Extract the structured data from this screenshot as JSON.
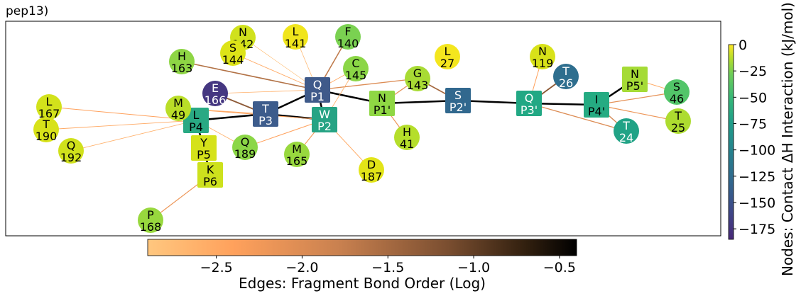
{
  "panel_label": "pep13)",
  "node_colorbar": {
    "title": "Nodes: Contact ΔH Interaction (kJ/mol)",
    "ticks": [
      "0",
      "−25",
      "−50",
      "−75",
      "−100",
      "−125",
      "−150",
      "−175"
    ],
    "tick_values": [
      0,
      -25,
      -50,
      -75,
      -100,
      -125,
      -150,
      -175
    ],
    "range": [
      -185,
      0
    ],
    "colormap": "viridis"
  },
  "edge_colorbar": {
    "title": "Edges: Fragment Bond Order (Log)",
    "ticks": [
      "−2.5",
      "−2.0",
      "−1.5",
      "−1.0",
      "−0.5"
    ],
    "tick_values": [
      -2.5,
      -2.0,
      -1.5,
      -1.0,
      -0.5
    ],
    "range": [
      -2.9,
      -0.4
    ],
    "colormap": "copper_r"
  },
  "nodes": [
    {
      "id": "Q_P1",
      "line1": "Q",
      "line2": "P1",
      "shape": "square",
      "color": "#3f5a8a",
      "text_color": "#ffffff"
    },
    {
      "id": "T_P3",
      "line1": "T",
      "line2": "P3",
      "shape": "square",
      "color": "#3d5c8c",
      "text_color": "#ffffff"
    },
    {
      "id": "W_P2",
      "line1": "W",
      "line2": "P2",
      "shape": "square",
      "color": "#26a384",
      "text_color": "#ffffff"
    },
    {
      "id": "L_P4",
      "line1": "L",
      "line2": "P4",
      "shape": "square",
      "color": "#29a983",
      "text_color": "#000000"
    },
    {
      "id": "Y_P5",
      "line1": "Y",
      "line2": "P5",
      "shape": "square",
      "color": "#d5e21a",
      "text_color": "#000000"
    },
    {
      "id": "K_P6",
      "line1": "K",
      "line2": "P6",
      "shape": "square",
      "color": "#cde11d",
      "text_color": "#000000"
    },
    {
      "id": "N_P1p",
      "line1": "N",
      "line2": "P1'",
      "shape": "square",
      "color": "#8fd744",
      "text_color": "#000000"
    },
    {
      "id": "S_P2p",
      "line1": "S",
      "line2": "P2'",
      "shape": "square",
      "color": "#31688e",
      "text_color": "#ffffff"
    },
    {
      "id": "Q_P3p",
      "line1": "Q",
      "line2": "P3'",
      "shape": "square",
      "color": "#22a884",
      "text_color": "#ffffff"
    },
    {
      "id": "I_P4p",
      "line1": "I",
      "line2": "P4'",
      "shape": "square",
      "color": "#25ab82",
      "text_color": "#000000"
    },
    {
      "id": "N_P5p",
      "line1": "N",
      "line2": "P5'",
      "shape": "square",
      "color": "#a5db36",
      "text_color": "#000000"
    },
    {
      "id": "E_166",
      "line1": "E",
      "line2": "166",
      "shape": "circle",
      "color": "#453781",
      "text_color": "#ffffff"
    },
    {
      "id": "N_142",
      "line1": "N",
      "line2": "142",
      "shape": "circle",
      "color": "#d0e11c",
      "text_color": "#000000"
    },
    {
      "id": "S_144",
      "line1": "S",
      "line2": "144",
      "shape": "circle",
      "color": "#dde318",
      "text_color": "#000000"
    },
    {
      "id": "L_141",
      "line1": "L",
      "line2": "141",
      "shape": "circle",
      "color": "#f0e51c",
      "text_color": "#000000"
    },
    {
      "id": "F_140",
      "line1": "F",
      "line2": "140",
      "shape": "circle",
      "color": "#7ad151",
      "text_color": "#000000"
    },
    {
      "id": "H_163",
      "line1": "H",
      "line2": "163",
      "shape": "circle",
      "color": "#8ed645",
      "text_color": "#000000"
    },
    {
      "id": "C_145",
      "line1": "C",
      "line2": "145",
      "shape": "circle",
      "color": "#8bd646",
      "text_color": "#000000"
    },
    {
      "id": "G_143",
      "line1": "G",
      "line2": "143",
      "shape": "circle",
      "color": "#a8db34",
      "text_color": "#000000"
    },
    {
      "id": "L_27",
      "line1": "L",
      "line2": "27",
      "shape": "circle",
      "color": "#f4e61e",
      "text_color": "#000000"
    },
    {
      "id": "N_119",
      "line1": "N",
      "line2": "119",
      "shape": "circle",
      "color": "#d8e219",
      "text_color": "#000000"
    },
    {
      "id": "T_26",
      "line1": "T",
      "line2": "26",
      "shape": "circle",
      "color": "#2e6e8e",
      "text_color": "#ffffff"
    },
    {
      "id": "S_46",
      "line1": "S",
      "line2": "46",
      "shape": "circle",
      "color": "#52c569",
      "text_color": "#000000"
    },
    {
      "id": "T_25",
      "line1": "T",
      "line2": "25",
      "shape": "circle",
      "color": "#addc30",
      "text_color": "#000000"
    },
    {
      "id": "T_24",
      "line1": "T",
      "line2": "24",
      "shape": "circle",
      "color": "#21a386",
      "text_color": "#ffffff"
    },
    {
      "id": "M_49",
      "line1": "M",
      "line2": "49",
      "shape": "circle",
      "color": "#bade28",
      "text_color": "#000000"
    },
    {
      "id": "L_167",
      "line1": "L",
      "line2": "167",
      "shape": "circle",
      "color": "#d2e21b",
      "text_color": "#000000"
    },
    {
      "id": "T_190",
      "line1": "T",
      "line2": "190",
      "shape": "circle",
      "color": "#d8e219",
      "text_color": "#000000"
    },
    {
      "id": "Q_192",
      "line1": "Q",
      "line2": "192",
      "shape": "circle",
      "color": "#d0e11c",
      "text_color": "#000000"
    },
    {
      "id": "Q_189",
      "line1": "Q",
      "line2": "189",
      "shape": "circle",
      "color": "#8bd646",
      "text_color": "#000000"
    },
    {
      "id": "M_165",
      "line1": "M",
      "line2": "165",
      "shape": "circle",
      "color": "#98d83e",
      "text_color": "#000000"
    },
    {
      "id": "H_41",
      "line1": "H",
      "line2": "41",
      "shape": "circle",
      "color": "#b5de2b",
      "text_color": "#000000"
    },
    {
      "id": "D_187",
      "line1": "D",
      "line2": "187",
      "shape": "circle",
      "color": "#e2e418",
      "text_color": "#000000"
    },
    {
      "id": "P_168",
      "line1": "P",
      "line2": "168",
      "shape": "circle",
      "color": "#98d83e",
      "text_color": "#000000"
    }
  ],
  "edges": [
    {
      "from": "Q_P1",
      "to": "T_P3",
      "backbone": true
    },
    {
      "from": "Q_P1",
      "to": "W_P2",
      "backbone": true
    },
    {
      "from": "Q_P1",
      "to": "N_P1p",
      "backbone": true
    },
    {
      "from": "T_P3",
      "to": "L_P4",
      "backbone": true
    },
    {
      "from": "T_P3",
      "to": "W_P2",
      "backbone": true
    },
    {
      "from": "L_P4",
      "to": "Y_P5",
      "backbone": true
    },
    {
      "from": "Y_P5",
      "to": "K_P6",
      "backbone": true
    },
    {
      "from": "N_P1p",
      "to": "S_P2p",
      "backbone": true
    },
    {
      "from": "S_P2p",
      "to": "Q_P3p",
      "backbone": true
    },
    {
      "from": "Q_P3p",
      "to": "I_P4p",
      "backbone": true
    },
    {
      "from": "I_P4p",
      "to": "N_P5p",
      "backbone": true
    },
    {
      "from": "T_P3",
      "to": "E_166",
      "value": -1.3
    },
    {
      "from": "Q_P1",
      "to": "E_166",
      "value": -2.6
    },
    {
      "from": "Q_P1",
      "to": "H_163",
      "value": -1.6
    },
    {
      "from": "Q_P1",
      "to": "F_140",
      "value": -1.7
    },
    {
      "from": "Q_P1",
      "to": "L_141",
      "value": -2.7
    },
    {
      "from": "Q_P1",
      "to": "N_142",
      "value": -2.8
    },
    {
      "from": "Q_P1",
      "to": "S_144",
      "value": -2.5
    },
    {
      "from": "Q_P1",
      "to": "C_145",
      "value": -2.5
    },
    {
      "from": "Q_P1",
      "to": "G_143",
      "value": -2.0
    },
    {
      "from": "W_P2",
      "to": "M_49",
      "value": -2.4
    },
    {
      "from": "W_P2",
      "to": "Q_189",
      "value": -2.4
    },
    {
      "from": "W_P2",
      "to": "M_165",
      "value": -2.3
    },
    {
      "from": "W_P2",
      "to": "D_187",
      "value": -2.5
    },
    {
      "from": "W_P2",
      "to": "C_145",
      "value": -2.6
    },
    {
      "from": "N_P1p",
      "to": "G_143",
      "value": -2.1
    },
    {
      "from": "N_P1p",
      "to": "H_41",
      "value": -2.2
    },
    {
      "from": "S_P2p",
      "to": "G_143",
      "value": -1.5
    },
    {
      "from": "Q_P3p",
      "to": "T_26",
      "value": -1.3
    },
    {
      "from": "Q_P3p",
      "to": "N_119",
      "value": -2.4
    },
    {
      "from": "Q_P3p",
      "to": "T_24",
      "value": -2.0
    },
    {
      "from": "I_P4p",
      "to": "T_24",
      "value": -1.9
    },
    {
      "from": "I_P4p",
      "to": "S_46",
      "value": -2.1
    },
    {
      "from": "I_P4p",
      "to": "T_25",
      "value": -2.2
    },
    {
      "from": "N_P5p",
      "to": "S_46",
      "value": -2.5
    },
    {
      "from": "L_P4",
      "to": "L_167",
      "value": -2.4
    },
    {
      "from": "L_P4",
      "to": "T_190",
      "value": -2.5
    },
    {
      "from": "L_P4",
      "to": "Q_192",
      "value": -2.6
    },
    {
      "from": "L_P4",
      "to": "Q_189",
      "value": -2.6
    },
    {
      "from": "T_P3",
      "to": "M_49",
      "value": -2.5
    },
    {
      "from": "K_P6",
      "to": "P_168",
      "value": -2.2
    }
  ]
}
